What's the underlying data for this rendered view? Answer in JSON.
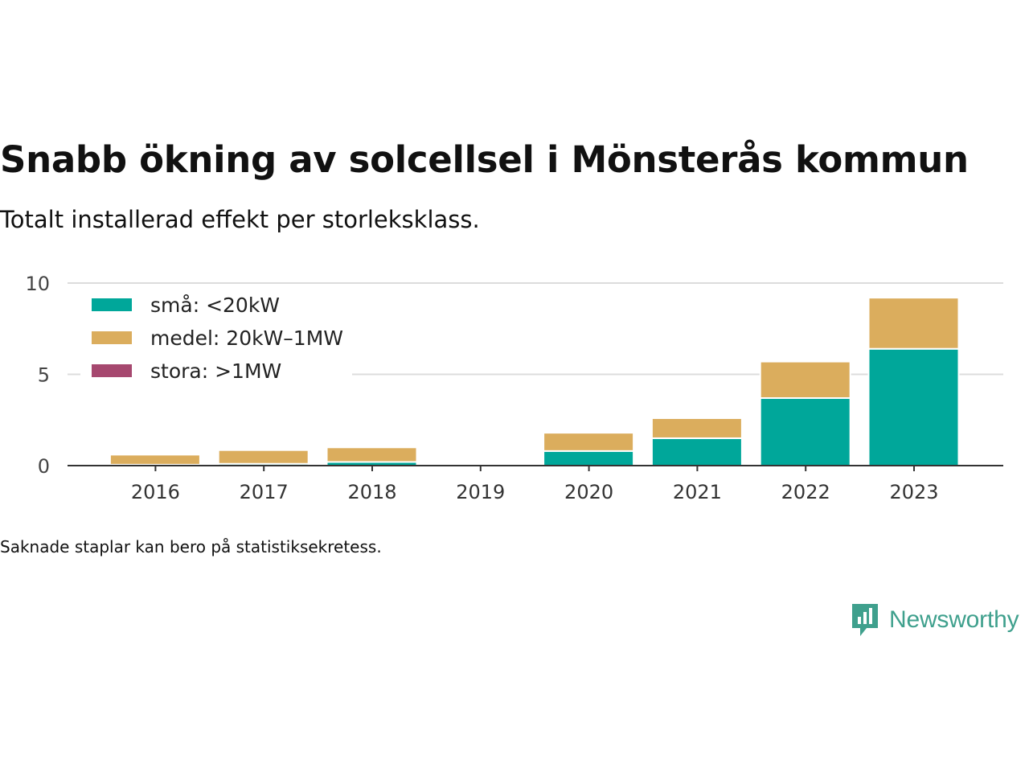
{
  "title": "Snabb ökning av solcellsel i Mönsterås kommun",
  "subtitle": "Totalt installerad effekt per storleksklass.",
  "footnote": "Saknade staplar kan bero på statistiksekretess.",
  "brand": {
    "name": "Newsworthy",
    "logo_icon": "newsworthy-logo-icon"
  },
  "chart_data": {
    "type": "bar",
    "stacked": true,
    "categories": [
      "2016",
      "2017",
      "2018",
      "2019",
      "2020",
      "2021",
      "2022",
      "2023"
    ],
    "series": [
      {
        "name": "små: <20kW",
        "color": "#00a79a",
        "values": [
          0.05,
          0.1,
          0.2,
          0,
          0.8,
          1.5,
          3.7,
          6.4
        ]
      },
      {
        "name": "medel: 20kW–1MW",
        "color": "#dbad5d",
        "values": [
          0.55,
          0.75,
          0.8,
          0,
          1.0,
          1.1,
          2.0,
          2.8
        ]
      },
      {
        "name": "stora: >1MW",
        "color": "#a6486f",
        "values": [
          0,
          0,
          0,
          0,
          0,
          0,
          0,
          0
        ]
      }
    ],
    "y_ticks": [
      "0",
      "5",
      "10"
    ],
    "ylim": [
      0,
      10
    ],
    "grid": true,
    "legend": "top-left"
  }
}
